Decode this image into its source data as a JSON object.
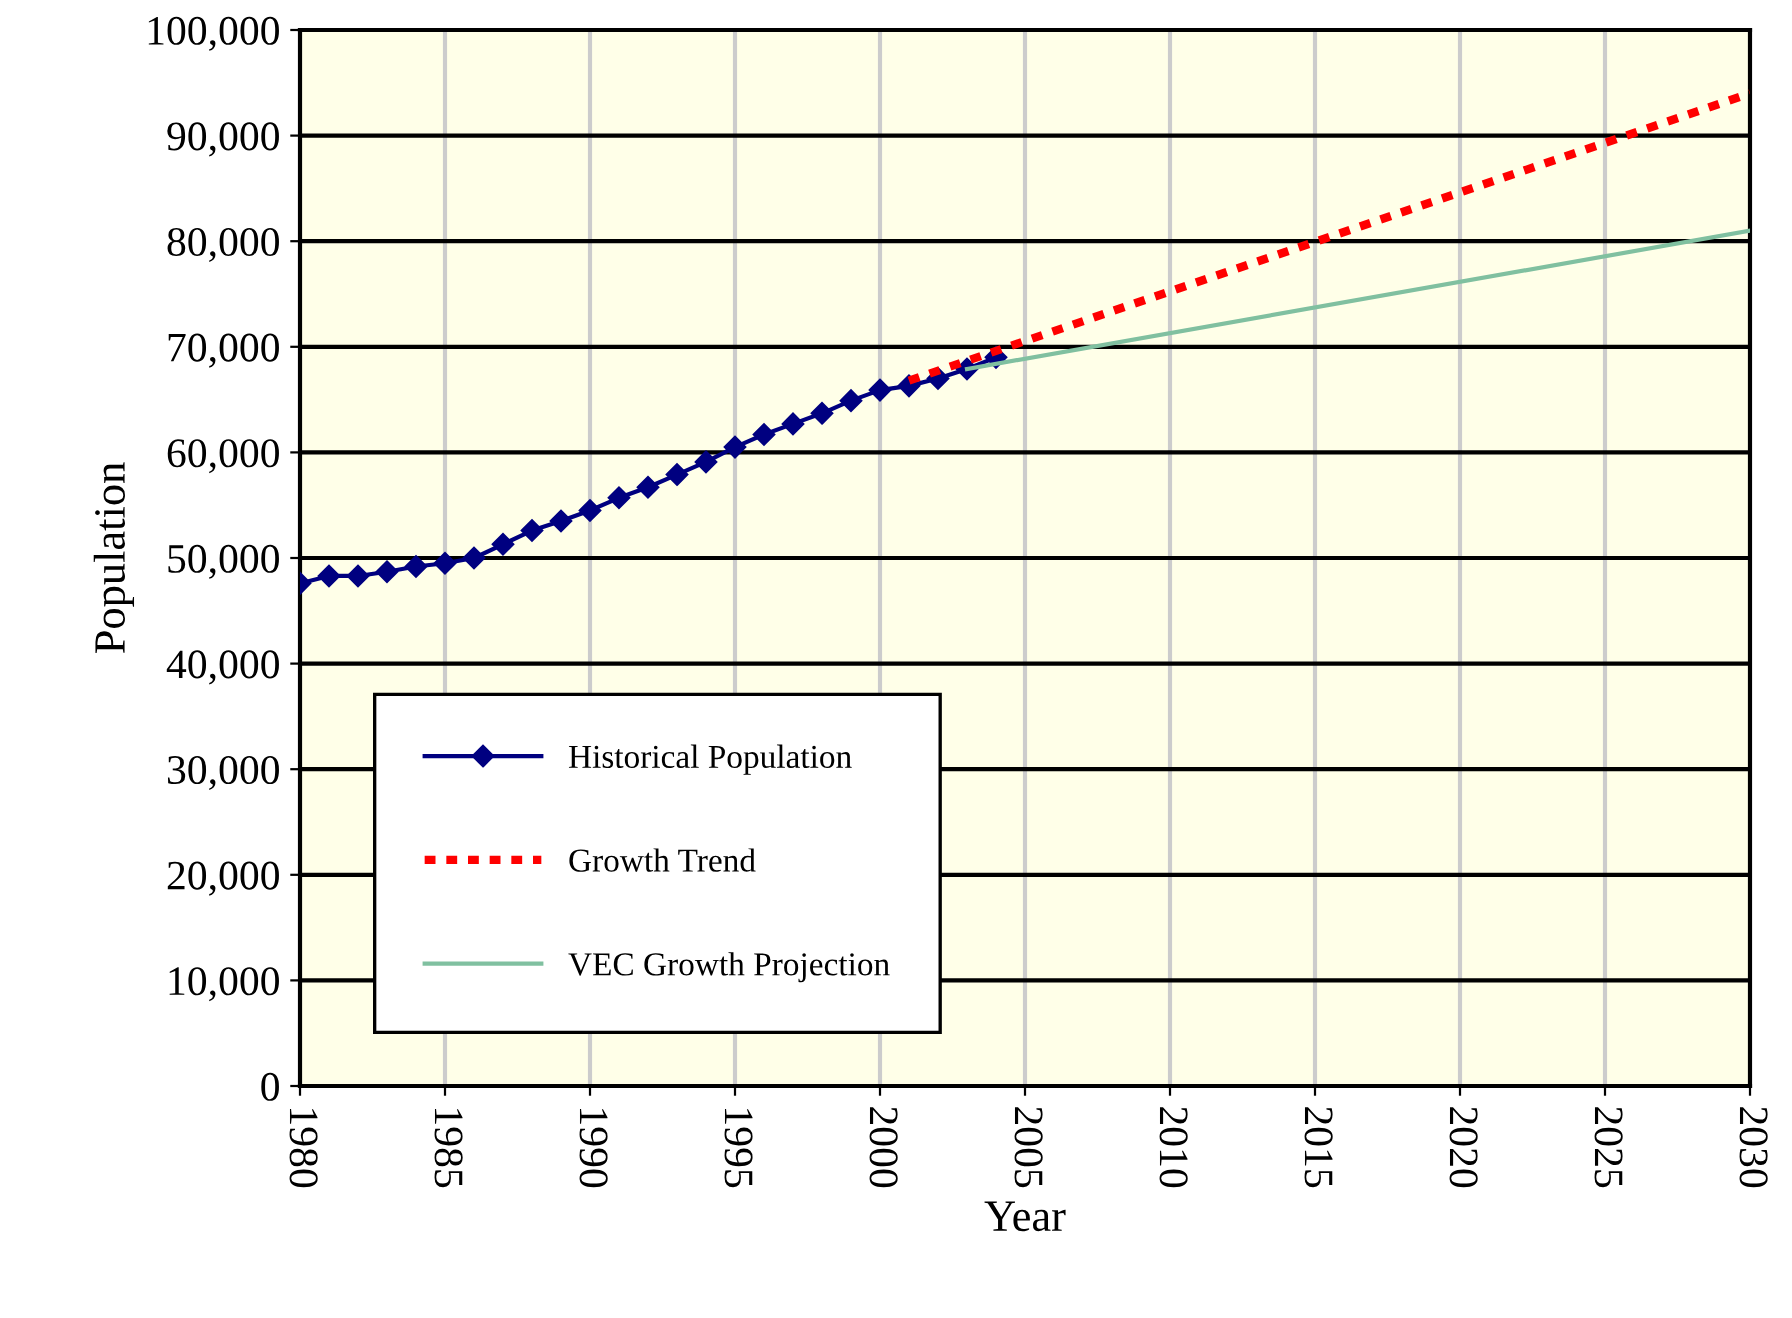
{
  "chart_data": {
    "type": "line",
    "xlabel": "Year",
    "ylabel": "Population",
    "xlim": [
      1980,
      2030
    ],
    "xticks": [
      1980,
      1985,
      1990,
      1995,
      2000,
      2005,
      2010,
      2015,
      2020,
      2025,
      2030
    ],
    "ylim": [
      0,
      100000
    ],
    "yticks": [
      {
        "value": 0,
        "label": "0"
      },
      {
        "value": 10000,
        "label": "10,000"
      },
      {
        "value": 20000,
        "label": "20,000"
      },
      {
        "value": 30000,
        "label": "30,000"
      },
      {
        "value": 40000,
        "label": "40,000"
      },
      {
        "value": 50000,
        "label": "50,000"
      },
      {
        "value": 60000,
        "label": "60,000"
      },
      {
        "value": 70000,
        "label": "70,000"
      },
      {
        "value": 80000,
        "label": "80,000"
      },
      {
        "value": 90000,
        "label": "90,000"
      },
      {
        "value": 100000,
        "label": "100,000"
      }
    ],
    "grid": true,
    "legend": "bottom left",
    "series": [
      {
        "name": "Historical Population",
        "color": "#000080",
        "marker": "diamond",
        "line_style": "solid",
        "x": [
          1980,
          1981,
          1982,
          1983,
          1984,
          1985,
          1986,
          1987,
          1988,
          1989,
          1990,
          1991,
          1992,
          1993,
          1994,
          1995,
          1996,
          1997,
          1998,
          1999,
          2000,
          2001,
          2002,
          2003,
          2004
        ],
        "values": [
          47600,
          48300,
          48300,
          48700,
          49200,
          49500,
          50000,
          51300,
          52600,
          53500,
          54500,
          55700,
          56700,
          57900,
          59100,
          60500,
          61700,
          62700,
          63700,
          64900,
          65900,
          66300,
          67000,
          67900,
          69000
        ]
      },
      {
        "name": "Growth Trend",
        "color": "#ff0000",
        "marker": "none",
        "line_style": "dotted",
        "x": [
          2001,
          2030
        ],
        "values": [
          66800,
          94000
        ]
      },
      {
        "name": "VEC Growth Projection",
        "color": "#80c0a0",
        "marker": "none",
        "line_style": "solid",
        "x": [
          2003,
          2030
        ],
        "values": [
          67900,
          81000
        ]
      }
    ]
  }
}
